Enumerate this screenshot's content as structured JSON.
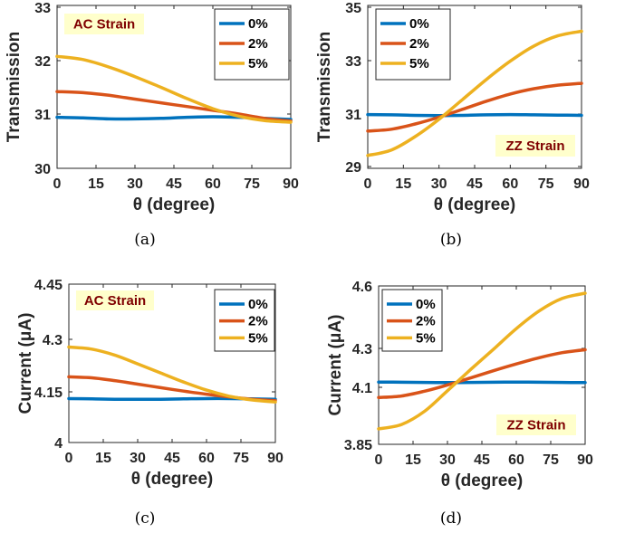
{
  "chart_data": [
    {
      "type": "line",
      "caption": "(a)",
      "annotation": "AC Strain",
      "xlabel": "θ (degree)",
      "ylabel": "Transmission",
      "xlim": [
        0,
        90
      ],
      "ylim": [
        30,
        33
      ],
      "xticks": [
        "0",
        "15",
        "30",
        "45",
        "60",
        "75",
        "90"
      ],
      "yticks": [
        "30",
        "31",
        "32",
        "33"
      ],
      "x": [
        0,
        10,
        20,
        30,
        40,
        50,
        60,
        70,
        80,
        90
      ],
      "series": [
        {
          "name": "0%",
          "values": [
            30.94,
            30.93,
            30.91,
            30.91,
            30.92,
            30.94,
            30.95,
            30.94,
            30.92,
            30.9
          ]
        },
        {
          "name": "2%",
          "values": [
            31.42,
            31.4,
            31.35,
            31.28,
            31.21,
            31.14,
            31.07,
            31.0,
            30.92,
            30.87
          ]
        },
        {
          "name": "5%",
          "values": [
            32.08,
            32.02,
            31.88,
            31.7,
            31.5,
            31.29,
            31.1,
            30.96,
            30.88,
            30.85
          ]
        }
      ]
    },
    {
      "type": "line",
      "caption": "(b)",
      "annotation": "ZZ Strain",
      "xlabel": "θ (degree)",
      "ylabel": "Transmission",
      "xlim": [
        0,
        90
      ],
      "ylim": [
        29,
        35
      ],
      "xticks": [
        "0",
        "15",
        "30",
        "45",
        "60",
        "75",
        "90"
      ],
      "yticks": [
        "29",
        "31",
        "33",
        "35"
      ],
      "x": [
        0,
        10,
        20,
        30,
        40,
        50,
        60,
        70,
        80,
        90
      ],
      "series": [
        {
          "name": "0%",
          "values": [
            30.98,
            30.97,
            30.95,
            30.94,
            30.95,
            30.97,
            30.98,
            30.97,
            30.96,
            30.95
          ]
        },
        {
          "name": "2%",
          "values": [
            30.35,
            30.42,
            30.62,
            30.88,
            31.18,
            31.48,
            31.75,
            31.95,
            32.08,
            32.15
          ]
        },
        {
          "name": "5%",
          "values": [
            29.42,
            29.63,
            30.14,
            30.8,
            31.55,
            32.3,
            32.98,
            33.55,
            33.93,
            34.1
          ]
        }
      ]
    },
    {
      "type": "line",
      "caption": "(c)",
      "annotation": "AC Strain",
      "xlabel": "θ (degree)",
      "ylabel": "Current (μA)",
      "xlim": [
        0,
        90
      ],
      "ylim": [
        4.0,
        4.45
      ],
      "xticks": [
        "0",
        "15",
        "30",
        "45",
        "60",
        "75",
        "90"
      ],
      "yticks": [
        "4",
        "4.15",
        "4.3",
        "4.45"
      ],
      "x": [
        0,
        10,
        20,
        30,
        40,
        50,
        60,
        70,
        80,
        90
      ],
      "series": [
        {
          "name": "0%",
          "values": [
            4.13,
            4.129,
            4.128,
            4.128,
            4.128,
            4.129,
            4.13,
            4.13,
            4.129,
            4.128
          ]
        },
        {
          "name": "2%",
          "values": [
            4.193,
            4.19,
            4.182,
            4.172,
            4.162,
            4.152,
            4.143,
            4.135,
            4.128,
            4.124
          ]
        },
        {
          "name": "5%",
          "values": [
            4.278,
            4.272,
            4.255,
            4.23,
            4.204,
            4.178,
            4.155,
            4.137,
            4.126,
            4.12
          ]
        }
      ]
    },
    {
      "type": "line",
      "caption": "(d)",
      "annotation": "ZZ Strain",
      "xlabel": "θ (degree)",
      "ylabel": "Current (μA)",
      "xlim": [
        0,
        90
      ],
      "ylim": [
        3.85,
        4.6
      ],
      "xticks": [
        "0",
        "15",
        "30",
        "45",
        "60",
        "75",
        "90"
      ],
      "yticks": [
        "3.85",
        "4.1",
        "4.3",
        "4.6"
      ],
      "x": [
        0,
        10,
        20,
        30,
        40,
        50,
        60,
        70,
        80,
        90
      ],
      "series": [
        {
          "name": "0%",
          "values": [
            4.127,
            4.126,
            4.125,
            4.124,
            4.125,
            4.126,
            4.127,
            4.126,
            4.125,
            4.124
          ]
        },
        {
          "name": "2%",
          "values": [
            4.055,
            4.062,
            4.083,
            4.112,
            4.148,
            4.185,
            4.22,
            4.252,
            4.278,
            4.293
          ]
        },
        {
          "name": "5%",
          "values": [
            3.918,
            3.937,
            3.995,
            4.085,
            4.19,
            4.295,
            4.395,
            4.48,
            4.54,
            4.565
          ]
        }
      ]
    }
  ],
  "colors": {
    "s0": "#0072BD",
    "s1": "#D95319",
    "s2": "#EDB120",
    "annoBg": "#FFFFCC",
    "annoText": "#7F0000"
  }
}
